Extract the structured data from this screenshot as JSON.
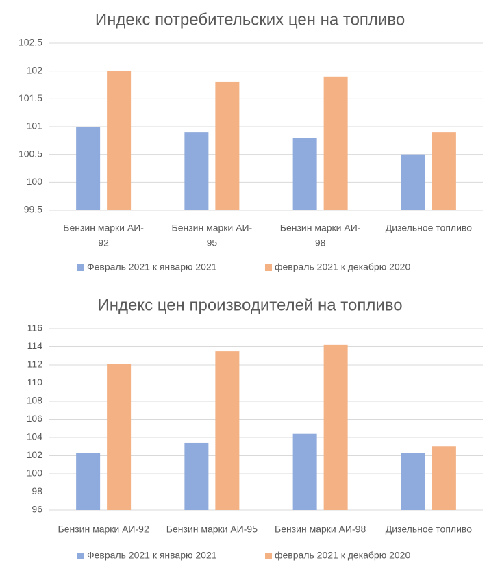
{
  "colors": {
    "series1": "#8faadc",
    "series2": "#f4b183"
  },
  "chart_data": [
    {
      "type": "bar",
      "title": "Индекс потребительских  цен на топливо",
      "ylim": [
        99.5,
        102.5
      ],
      "yticks": [
        "99.5",
        "100",
        "100.5",
        "101",
        "101.5",
        "102",
        "102.5"
      ],
      "grid": true,
      "legend": "bottom",
      "categories": [
        [
          "Бензин марки АИ-",
          "92"
        ],
        [
          "Бензин марки АИ-",
          "95"
        ],
        [
          "Бензин марки АИ-",
          "98"
        ],
        [
          "Дизельное топливо"
        ]
      ],
      "series": [
        {
          "name": "Февраль 2021 к январю 2021",
          "values": [
            101.0,
            100.9,
            100.8,
            100.5
          ]
        },
        {
          "name": "февраль 2021 к декабрю 2020",
          "values": [
            102.0,
            101.8,
            101.9,
            100.9
          ]
        }
      ]
    },
    {
      "type": "bar",
      "title": "Индекс цен производителей на топливо",
      "ylim": [
        96,
        116
      ],
      "yticks": [
        "96",
        "98",
        "100",
        "102",
        "104",
        "106",
        "108",
        "110",
        "112",
        "114",
        "116"
      ],
      "grid": true,
      "legend": "bottom",
      "categories": [
        [
          "Бензин марки АИ-92"
        ],
        [
          "Бензин марки АИ-95"
        ],
        [
          "Бензин марки АИ-98"
        ],
        [
          "Дизельное топливо"
        ]
      ],
      "series": [
        {
          "name": "Февраль 2021 к январю 2021",
          "values": [
            102.3,
            103.4,
            104.4,
            102.3
          ]
        },
        {
          "name": "февраль 2021 к декабрю 2020",
          "values": [
            112.1,
            113.5,
            114.2,
            103.0
          ]
        }
      ]
    }
  ]
}
